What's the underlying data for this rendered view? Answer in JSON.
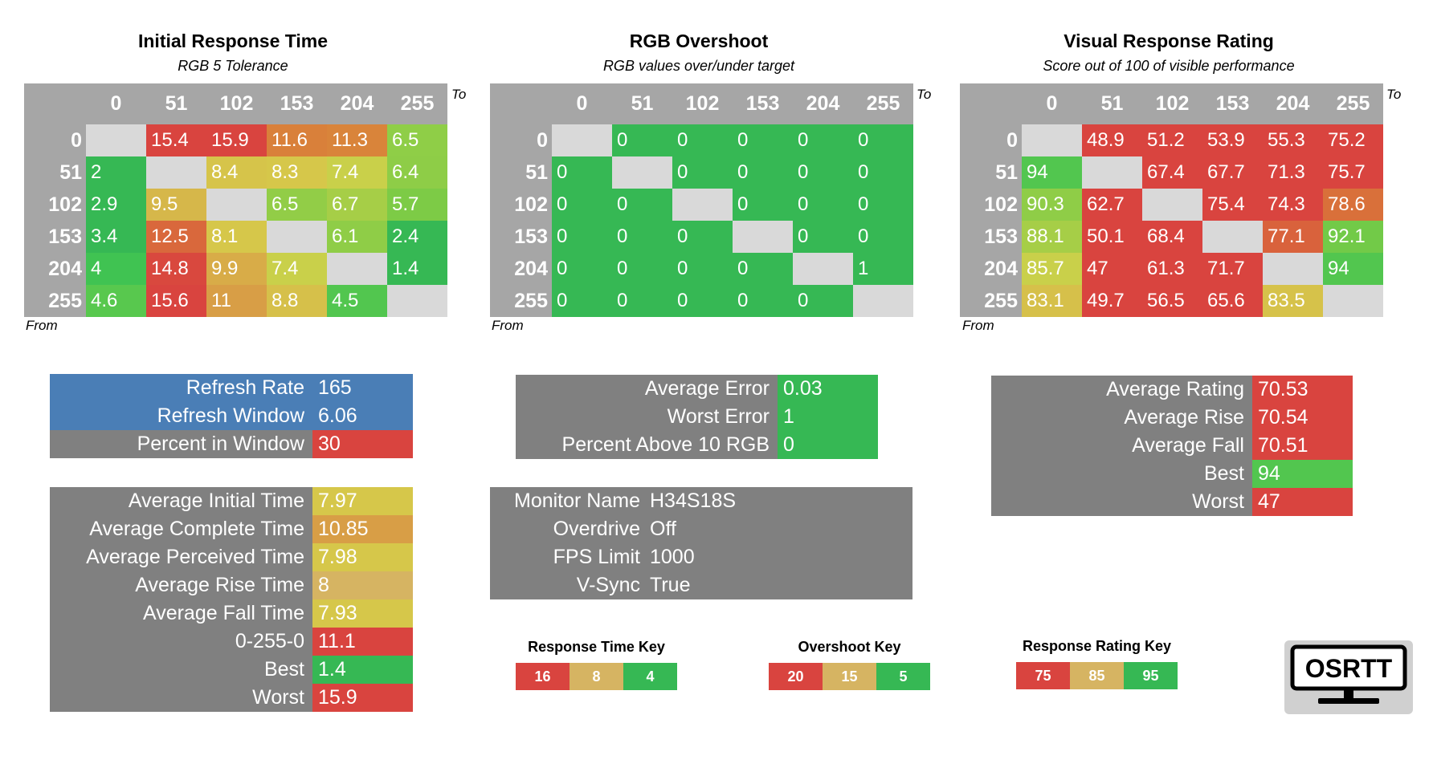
{
  "chart_data": [
    {
      "type": "heatmap",
      "title": "Initial Response Time",
      "subtitle": "RGB 5 Tolerance",
      "xlabel": "To",
      "ylabel": "From",
      "columns": [
        "0",
        "51",
        "102",
        "153",
        "204",
        "255"
      ],
      "rows": [
        "0",
        "51",
        "102",
        "153",
        "204",
        "255"
      ],
      "values": [
        [
          null,
          15.4,
          15.9,
          11.6,
          11.3,
          6.5
        ],
        [
          2,
          null,
          8.4,
          8.3,
          7.4,
          6.4
        ],
        [
          2.9,
          9.5,
          null,
          6.5,
          6.7,
          5.7
        ],
        [
          3.4,
          12.5,
          8.1,
          null,
          6.1,
          2.4
        ],
        [
          4,
          14.8,
          9.9,
          7.4,
          null,
          1.4
        ],
        [
          4.6,
          15.6,
          11,
          8.8,
          4.5,
          null
        ]
      ],
      "colors": [
        [
          null,
          "#d9443f",
          "#d9443f",
          "#d9803a",
          "#d9843a",
          "#8fce47"
        ],
        [
          "#36b854",
          null,
          "#d6c44a",
          "#d6c74a",
          "#c9d04a",
          "#8ecd47"
        ],
        [
          "#36b854",
          "#d6b74a",
          null,
          "#92cd47",
          "#a6ce47",
          "#7dcb46"
        ],
        [
          "#36b854",
          "#d9683c",
          "#d6c74a",
          null,
          "#8fcd47",
          "#36b854"
        ],
        [
          "#40c352",
          "#d9483e",
          "#d8ac48",
          "#c9d04a",
          null,
          "#36b854"
        ],
        [
          "#58c84e",
          "#d9443f",
          "#d89e46",
          "#d6c04a",
          "#52c64f",
          null
        ]
      ]
    },
    {
      "type": "heatmap",
      "title": "RGB Overshoot",
      "subtitle": "RGB values over/under target",
      "xlabel": "To",
      "ylabel": "From",
      "columns": [
        "0",
        "51",
        "102",
        "153",
        "204",
        "255"
      ],
      "rows": [
        "0",
        "51",
        "102",
        "153",
        "204",
        "255"
      ],
      "values": [
        [
          null,
          0,
          0,
          0,
          0,
          0
        ],
        [
          0,
          null,
          0,
          0,
          0,
          0
        ],
        [
          0,
          0,
          null,
          0,
          0,
          0
        ],
        [
          0,
          0,
          0,
          null,
          0,
          0
        ],
        [
          0,
          0,
          0,
          0,
          null,
          1
        ],
        [
          0,
          0,
          0,
          0,
          0,
          null
        ]
      ],
      "colors": [
        [
          null,
          "#36b854",
          "#36b854",
          "#36b854",
          "#36b854",
          "#36b854"
        ],
        [
          "#36b854",
          null,
          "#36b854",
          "#36b854",
          "#36b854",
          "#36b854"
        ],
        [
          "#36b854",
          "#36b854",
          null,
          "#36b854",
          "#36b854",
          "#36b854"
        ],
        [
          "#36b854",
          "#36b854",
          "#36b854",
          null,
          "#36b854",
          "#36b854"
        ],
        [
          "#36b854",
          "#36b854",
          "#36b854",
          "#36b854",
          null,
          "#36b854"
        ],
        [
          "#36b854",
          "#36b854",
          "#36b854",
          "#36b854",
          "#36b854",
          null
        ]
      ]
    },
    {
      "type": "heatmap",
      "title": "Visual Response Rating",
      "subtitle": "Score out of 100 of visible performance",
      "xlabel": "To",
      "ylabel": "From",
      "columns": [
        "0",
        "51",
        "102",
        "153",
        "204",
        "255"
      ],
      "rows": [
        "0",
        "51",
        "102",
        "153",
        "204",
        "255"
      ],
      "values": [
        [
          null,
          48.9,
          51.2,
          53.9,
          55.3,
          75.2
        ],
        [
          94,
          null,
          67.4,
          67.7,
          71.3,
          75.7
        ],
        [
          90.3,
          62.7,
          null,
          75.4,
          74.3,
          78.6
        ],
        [
          88.1,
          50.1,
          68.4,
          null,
          77.1,
          92.1
        ],
        [
          85.7,
          47,
          61.3,
          71.7,
          null,
          94
        ],
        [
          83.1,
          49.7,
          56.5,
          65.6,
          83.5,
          null
        ]
      ],
      "colors": [
        [
          null,
          "#d9443f",
          "#d9443f",
          "#d9443f",
          "#d9443f",
          "#d9443f"
        ],
        [
          "#52c64f",
          null,
          "#d9443f",
          "#d9443f",
          "#d9443f",
          "#d9443f"
        ],
        [
          "#8fcd47",
          "#d9443f",
          null,
          "#d9443f",
          "#d9443f",
          "#d9703a"
        ],
        [
          "#a6ce47",
          "#d9443f",
          "#d9443f",
          null,
          "#d9623c",
          "#72ca48"
        ],
        [
          "#c9d04a",
          "#d9443f",
          "#d9443f",
          "#d9443f",
          null,
          "#52c64f"
        ],
        [
          "#d6c04a",
          "#d9443f",
          "#d9443f",
          "#d9443f",
          "#d6c24a",
          null
        ]
      ]
    }
  ],
  "refresh_panel": [
    {
      "label": "Refresh Rate",
      "value": "165",
      "label_color": "#4a7eb6",
      "value_color": "#4a7eb6"
    },
    {
      "label": "Refresh Window",
      "value": "6.06",
      "label_color": "#4a7eb6",
      "value_color": "#4a7eb6"
    },
    {
      "label": "Percent in Window",
      "value": "30",
      "label_color": "#808080",
      "value_color": "#d9443f"
    }
  ],
  "time_panel": [
    {
      "label": "Average Initial Time",
      "value": "7.97",
      "value_color": "#d6c74a"
    },
    {
      "label": "Average Complete Time",
      "value": "10.85",
      "value_color": "#d89e46"
    },
    {
      "label": "Average Perceived Time",
      "value": "7.98",
      "value_color": "#d6c74a"
    },
    {
      "label": "Average Rise Time",
      "value": "8",
      "value_color": "#d6b462"
    },
    {
      "label": "Average Fall Time",
      "value": "7.93",
      "value_color": "#d6c74a"
    },
    {
      "label": "0-255-0",
      "value": "11.1",
      "value_color": "#d9443f"
    },
    {
      "label": "Best",
      "value": "1.4",
      "value_color": "#36b854"
    },
    {
      "label": "Worst",
      "value": "15.9",
      "value_color": "#d9443f"
    }
  ],
  "error_panel": [
    {
      "label": "Average Error",
      "value": "0.03",
      "value_color": "#36b854"
    },
    {
      "label": "Worst Error",
      "value": "1",
      "value_color": "#36b854"
    },
    {
      "label": "Percent Above 10 RGB",
      "value": "0",
      "value_color": "#36b854"
    }
  ],
  "monitor_panel": [
    {
      "label": "Monitor Name",
      "value": "H34S18S"
    },
    {
      "label": "Overdrive",
      "value": "Off"
    },
    {
      "label": "FPS Limit",
      "value": "1000"
    },
    {
      "label": "V-Sync",
      "value": "True"
    }
  ],
  "rating_panel": [
    {
      "label": "Average Rating",
      "value": "70.53",
      "value_color": "#d9443f"
    },
    {
      "label": "Average Rise",
      "value": "70.54",
      "value_color": "#d9443f"
    },
    {
      "label": "Average Fall",
      "value": "70.51",
      "value_color": "#d9443f"
    },
    {
      "label": "Best",
      "value": "94",
      "value_color": "#52c64f"
    },
    {
      "label": "Worst",
      "value": "47",
      "value_color": "#d9443f"
    }
  ],
  "keys": [
    {
      "title": "Response Time Key",
      "items": [
        {
          "label": "16",
          "color": "#d9443f"
        },
        {
          "label": "8",
          "color": "#d6b462"
        },
        {
          "label": "4",
          "color": "#36b854"
        }
      ]
    },
    {
      "title": "Overshoot Key",
      "items": [
        {
          "label": "20",
          "color": "#d9443f"
        },
        {
          "label": "15",
          "color": "#d6b462"
        },
        {
          "label": "5",
          "color": "#36b854"
        }
      ]
    },
    {
      "title": "Response Rating Key",
      "items": [
        {
          "label": "75",
          "color": "#d9443f"
        },
        {
          "label": "85",
          "color": "#d6b462"
        },
        {
          "label": "95",
          "color": "#36b854"
        }
      ]
    }
  ],
  "logo": {
    "text": "OSRTT",
    "icon": "monitor-icon"
  }
}
